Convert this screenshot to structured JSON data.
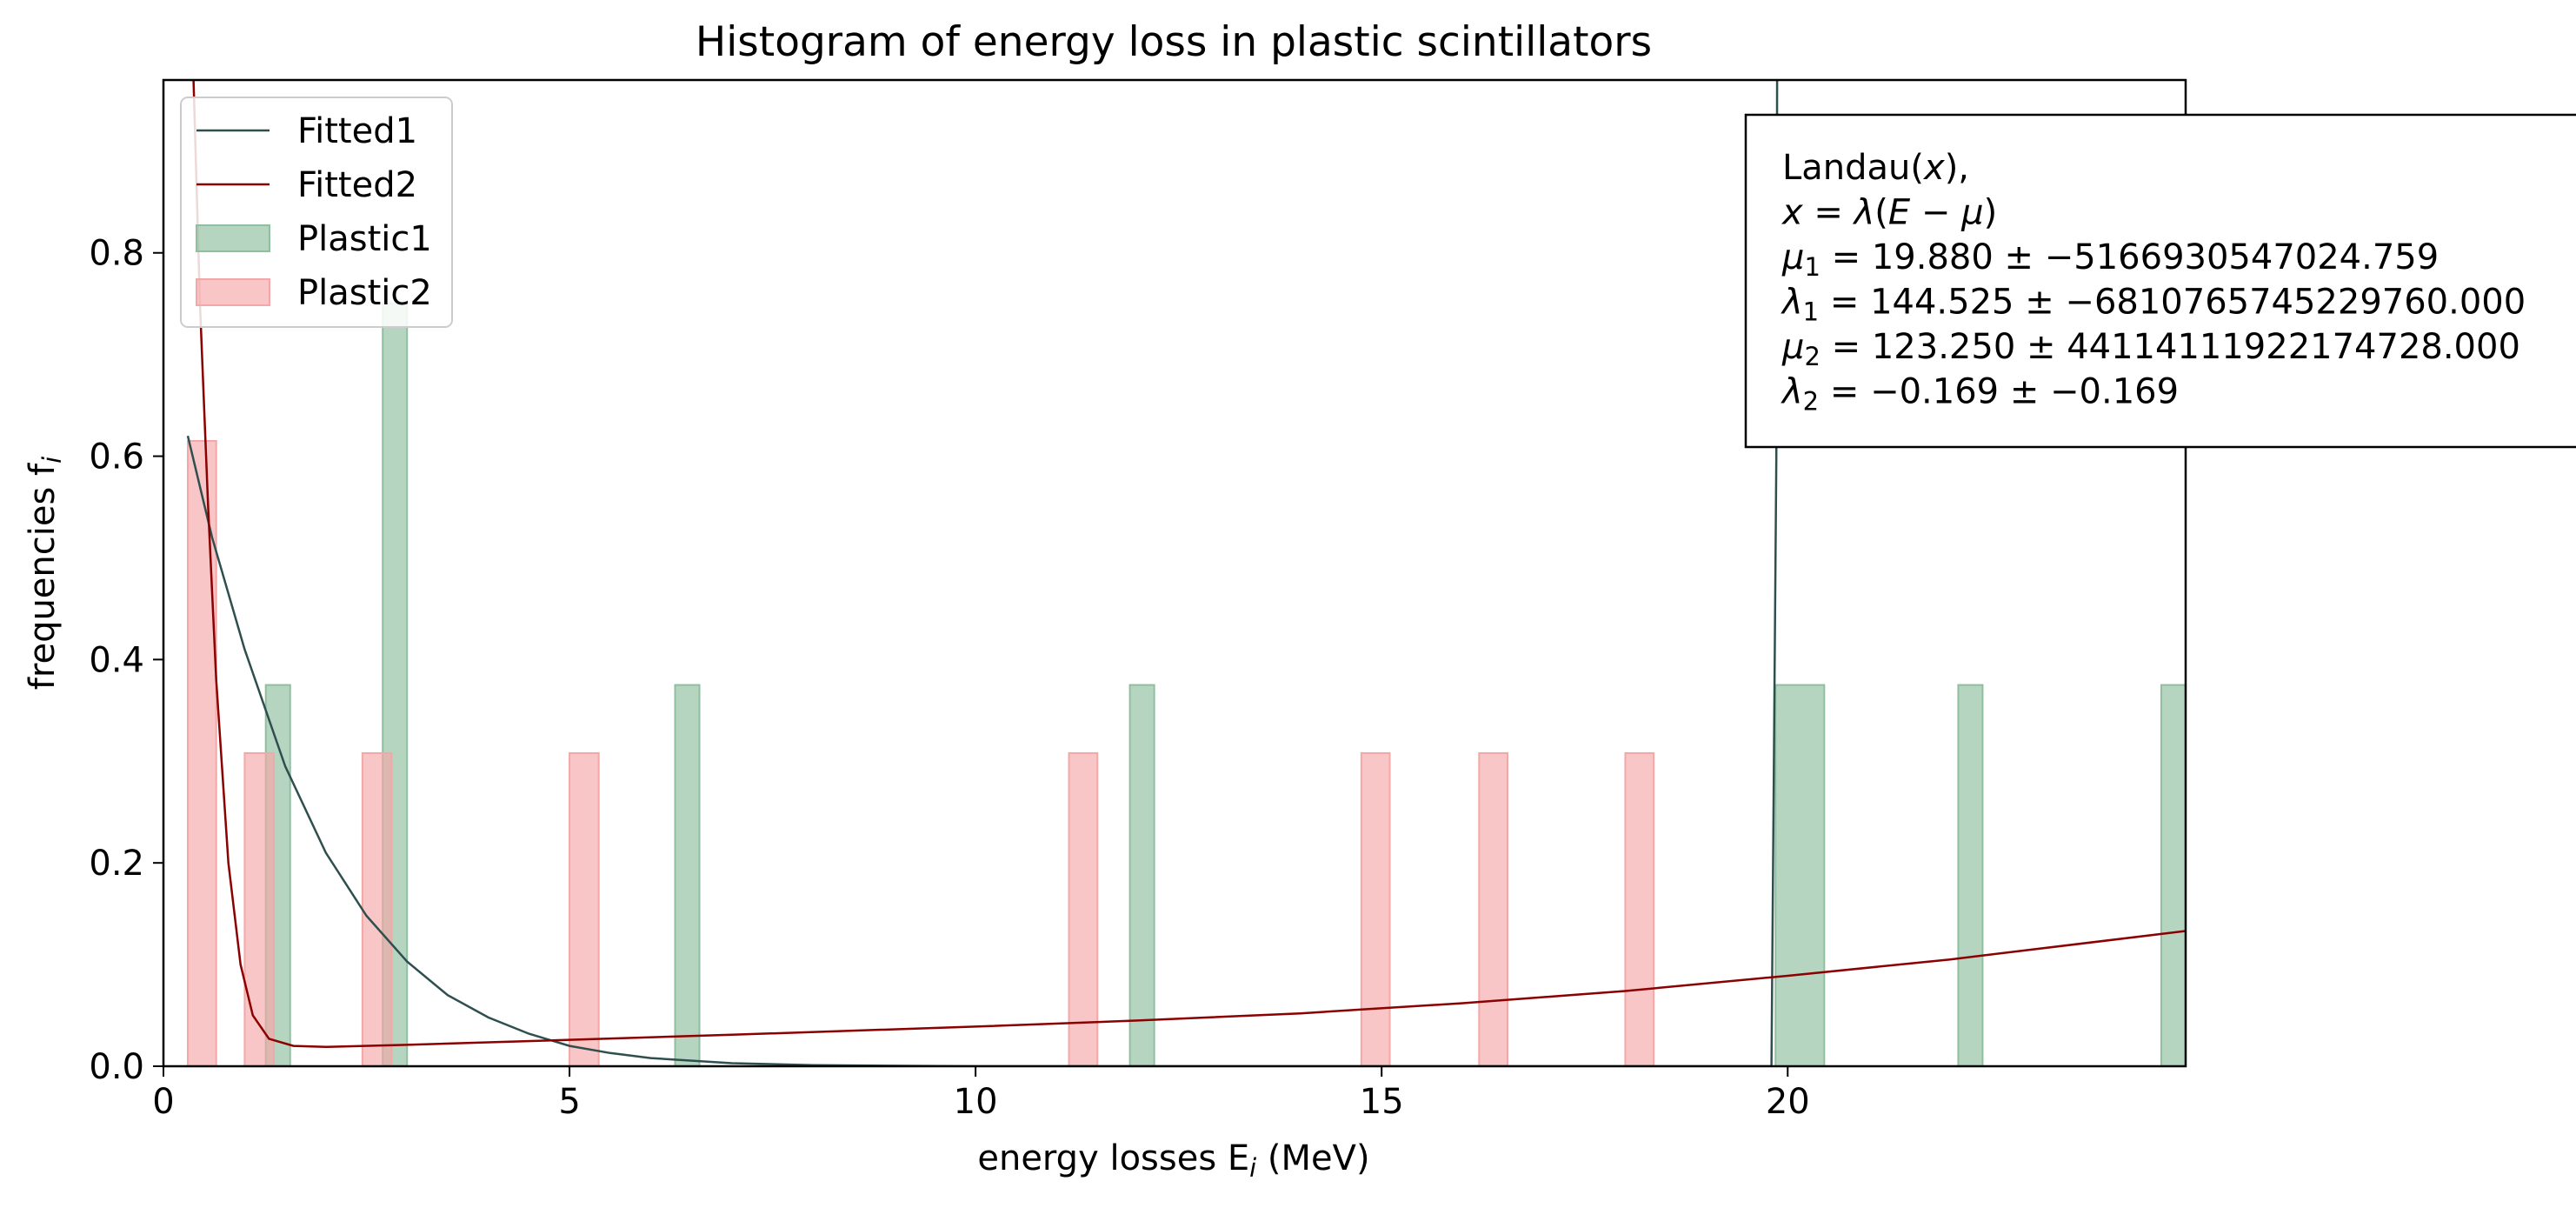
{
  "chart_data": {
    "type": "bar",
    "title": "Histogram of energy loss in plastic scintillators",
    "xlabel": "energy losses $E_i$ (MeV)",
    "ylabel": "frequencies $f_i$",
    "xlim": [
      0,
      24.9
    ],
    "ylim": [
      0,
      0.97
    ],
    "xticks": [
      0,
      5,
      10,
      15,
      20
    ],
    "yticks": [
      0.0,
      0.2,
      0.4,
      0.6,
      0.8
    ],
    "grid": false,
    "legend_position": "top-left",
    "histograms": [
      {
        "name": "Plastic1",
        "color": "#8fbf9f",
        "bars": [
          {
            "x0": 1.26,
            "x1": 1.56,
            "value": 0.375
          },
          {
            "x0": 2.7,
            "x1": 3.0,
            "value": 0.75
          },
          {
            "x0": 6.3,
            "x1": 6.6,
            "value": 0.375
          },
          {
            "x0": 11.9,
            "x1": 12.2,
            "value": 0.375
          },
          {
            "x0": 19.85,
            "x1": 20.45,
            "value": 0.375
          },
          {
            "x0": 22.1,
            "x1": 22.4,
            "value": 0.375
          },
          {
            "x0": 24.6,
            "x1": 24.9,
            "value": 0.375
          }
        ]
      },
      {
        "name": "Plastic2",
        "color": "#f4a7a7",
        "bars": [
          {
            "x0": 0.3,
            "x1": 0.65,
            "value": 0.615
          },
          {
            "x0": 1.0,
            "x1": 1.36,
            "value": 0.308
          },
          {
            "x0": 2.45,
            "x1": 2.81,
            "value": 0.308
          },
          {
            "x0": 5.0,
            "x1": 5.36,
            "value": 0.308
          },
          {
            "x0": 11.15,
            "x1": 11.5,
            "value": 0.308
          },
          {
            "x0": 14.75,
            "x1": 15.1,
            "value": 0.308
          },
          {
            "x0": 16.2,
            "x1": 16.55,
            "value": 0.308
          },
          {
            "x0": 18.0,
            "x1": 18.35,
            "value": 0.308
          }
        ]
      }
    ],
    "lines": [
      {
        "name": "Fitted1",
        "color": "#2f4f4f",
        "points": [
          [
            0.3,
            0.62
          ],
          [
            0.6,
            0.52
          ],
          [
            1.0,
            0.41
          ],
          [
            1.5,
            0.295
          ],
          [
            2.0,
            0.21
          ],
          [
            2.5,
            0.148
          ],
          [
            3.0,
            0.103
          ],
          [
            3.5,
            0.07
          ],
          [
            4.0,
            0.048
          ],
          [
            4.5,
            0.032
          ],
          [
            5.0,
            0.02
          ],
          [
            5.5,
            0.013
          ],
          [
            6.0,
            0.008
          ],
          [
            7.0,
            0.003
          ],
          [
            8.0,
            0.001
          ],
          [
            10.0,
            0.0
          ],
          [
            19.8,
            0.0
          ],
          [
            19.86,
            0.6
          ],
          [
            19.87,
            0.97
          ]
        ]
      },
      {
        "name": "Fitted2",
        "color": "#8b0000",
        "points": [
          [
            0.37,
            0.97
          ],
          [
            0.45,
            0.75
          ],
          [
            0.55,
            0.55
          ],
          [
            0.65,
            0.38
          ],
          [
            0.8,
            0.2
          ],
          [
            0.95,
            0.1
          ],
          [
            1.1,
            0.05
          ],
          [
            1.3,
            0.027
          ],
          [
            1.6,
            0.02
          ],
          [
            2.0,
            0.019
          ],
          [
            3.0,
            0.021
          ],
          [
            5.0,
            0.026
          ],
          [
            7.0,
            0.031
          ],
          [
            10.0,
            0.039
          ],
          [
            12.0,
            0.045
          ],
          [
            14.0,
            0.052
          ],
          [
            16.0,
            0.062
          ],
          [
            18.0,
            0.074
          ],
          [
            20.0,
            0.089
          ],
          [
            22.0,
            0.105
          ],
          [
            24.9,
            0.133
          ]
        ]
      }
    ],
    "legend": [
      "Fitted1",
      "Fitted2",
      "Plastic1",
      "Plastic2"
    ],
    "annotation": [
      "Landau($x$),",
      "$x = \\lambda(E - \\mu)$",
      "$\\mu_1 = 19.880 \\pm -5166930547024.759$",
      "$\\lambda_1 = 144.525 \\pm -6810765745229760.000$",
      "$\\mu_2 = 123.250 \\pm 44114111922174728.000$",
      "$\\lambda_2 = -0.169 \\pm -0.169$"
    ],
    "display": {
      "title": "Histogram of energy loss in plastic scintillators",
      "xlabel": "energy losses E",
      "xlabel_sub": "i",
      "xlabel_unit": " (MeV)",
      "ylabel": "frequencies f",
      "ylabel_sub": "i",
      "xtick_labels": [
        "0",
        "5",
        "10",
        "15",
        "20"
      ],
      "ytick_labels": [
        "0.0",
        "0.2",
        "0.4",
        "0.6",
        "0.8"
      ],
      "annotation": [
        [
          {
            "t": "Landau("
          },
          {
            "t": "x",
            "i": true
          },
          {
            "t": "),"
          }
        ],
        [
          {
            "t": "x",
            "i": true
          },
          {
            "t": " = "
          },
          {
            "t": "λ",
            "i": true
          },
          {
            "t": "("
          },
          {
            "t": "E",
            "i": true
          },
          {
            "t": " − "
          },
          {
            "t": "μ",
            "i": true
          },
          {
            "t": ")"
          }
        ],
        [
          {
            "t": "μ",
            "i": true
          },
          {
            "t": "1",
            "sub": true
          },
          {
            "t": " = 19.880 ± −5166930547024.759"
          }
        ],
        [
          {
            "t": "λ",
            "i": true
          },
          {
            "t": "1",
            "sub": true
          },
          {
            "t": " = 144.525 ± −6810765745229760.000"
          }
        ],
        [
          {
            "t": "μ",
            "i": true
          },
          {
            "t": "2",
            "sub": true
          },
          {
            "t": " = 123.250 ± 44114111922174728.000"
          }
        ],
        [
          {
            "t": "λ",
            "i": true
          },
          {
            "t": "2",
            "sub": true
          },
          {
            "t": " = −0.169 ± −0.169"
          }
        ]
      ]
    }
  }
}
